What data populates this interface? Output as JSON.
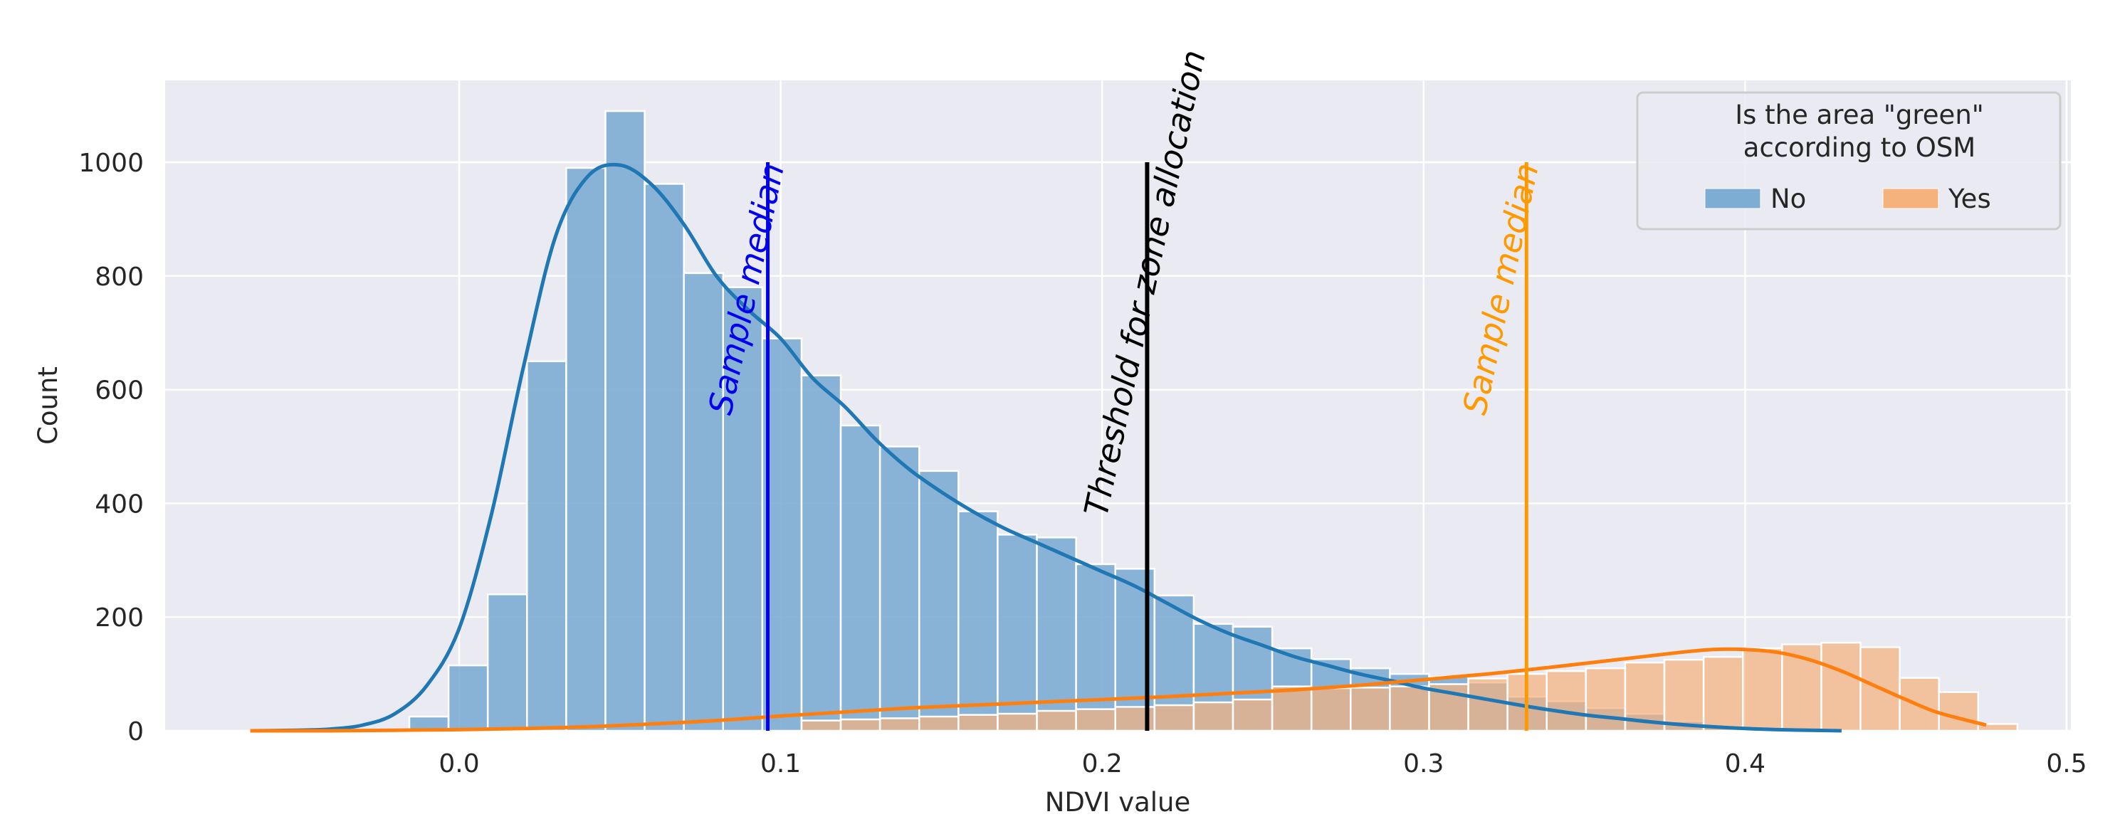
{
  "chart_data": {
    "type": "histogram",
    "xlabel": "NDVI value",
    "ylabel": "Count",
    "xlim": [
      -0.09,
      0.5
    ],
    "ylim": [
      0,
      1145
    ],
    "xticks": [
      0.0,
      0.1,
      0.2,
      0.3,
      0.4,
      0.5
    ],
    "xtick_labels": [
      "0.0",
      "0.1",
      "0.2",
      "0.3",
      "0.4",
      "0.5"
    ],
    "yticks": [
      0,
      200,
      400,
      600,
      800,
      1000
    ],
    "ytick_labels": [
      "0",
      "200",
      "400",
      "600",
      "800",
      "1000"
    ],
    "grid": true,
    "legend": {
      "title_lines": [
        "Is the area \"green\"",
        "according to OSM"
      ],
      "placement": "top-right",
      "entries": [
        {
          "label": "No",
          "color": "#7eadd3"
        },
        {
          "label": "Yes",
          "color": "#f5b27d"
        }
      ]
    },
    "series": [
      {
        "name": "No",
        "fill_color": "#7eadd3",
        "kde_color": "#1f77b4",
        "bins": {
          "start": -0.0155,
          "width": 0.0122,
          "counts": [
            25,
            115,
            240,
            650,
            990,
            1090,
            962,
            805,
            780,
            690,
            625,
            537,
            500,
            457,
            386,
            345,
            340,
            293,
            285,
            238,
            188,
            183,
            145,
            126,
            110,
            100,
            95,
            85,
            60,
            52,
            40,
            30,
            17,
            8,
            4,
            2,
            1,
            0,
            0,
            0
          ]
        },
        "kde": {
          "x": [
            -0.065,
            -0.05,
            -0.04,
            -0.03,
            -0.02,
            -0.01,
            0.0,
            0.01,
            0.02,
            0.03,
            0.04,
            0.05,
            0.06,
            0.07,
            0.08,
            0.09,
            0.1,
            0.11,
            0.12,
            0.13,
            0.14,
            0.15,
            0.16,
            0.17,
            0.18,
            0.19,
            0.2,
            0.21,
            0.22,
            0.23,
            0.24,
            0.25,
            0.26,
            0.27,
            0.28,
            0.29,
            0.3,
            0.31,
            0.32,
            0.33,
            0.34,
            0.35,
            0.36,
            0.37,
            0.38,
            0.39,
            0.4,
            0.41,
            0.42,
            0.43
          ],
          "y": [
            0,
            1,
            3,
            10,
            30,
            80,
            180,
            380,
            640,
            870,
            975,
            995,
            960,
            890,
            800,
            740,
            690,
            620,
            570,
            510,
            460,
            420,
            385,
            355,
            330,
            305,
            280,
            255,
            225,
            195,
            170,
            150,
            130,
            115,
            100,
            88,
            75,
            65,
            55,
            45,
            36,
            28,
            22,
            16,
            11,
            7,
            4,
            2,
            1,
            0
          ]
        },
        "median": 0.096,
        "median_label": "Sample median",
        "median_color": "#0000ee"
      },
      {
        "name": "Yes",
        "fill_color": "#f5b27d",
        "kde_color": "#ff7f0e",
        "bins": {
          "start": -0.0155,
          "width": 0.0122,
          "counts": [
            0,
            0,
            0,
            0,
            0,
            0,
            0,
            0,
            0,
            0,
            18,
            20,
            22,
            25,
            28,
            30,
            35,
            38,
            42,
            45,
            50,
            55,
            78,
            75,
            76,
            78,
            82,
            92,
            100,
            105,
            110,
            120,
            125,
            130,
            145,
            152,
            155,
            147,
            93,
            68,
            12
          ]
        },
        "kde": {
          "x": [
            -0.065,
            -0.04,
            -0.02,
            0.0,
            0.02,
            0.04,
            0.06,
            0.08,
            0.1,
            0.12,
            0.14,
            0.16,
            0.18,
            0.2,
            0.22,
            0.24,
            0.26,
            0.28,
            0.3,
            0.32,
            0.34,
            0.36,
            0.38,
            0.39,
            0.4,
            0.41,
            0.42,
            0.43,
            0.44,
            0.45,
            0.46,
            0.475
          ],
          "y": [
            0,
            0,
            1,
            2,
            4,
            7,
            12,
            18,
            26,
            33,
            40,
            45,
            50,
            55,
            60,
            66,
            72,
            80,
            90,
            100,
            112,
            125,
            138,
            143,
            143,
            138,
            125,
            105,
            80,
            55,
            32,
            10
          ]
        },
        "median": 0.332,
        "median_label": "Sample median",
        "median_color": "#ff9900"
      }
    ],
    "threshold": {
      "x": 0.214,
      "label": "Threshold for zone allocation",
      "color": "#000000"
    },
    "reference_line_top": 1000
  }
}
